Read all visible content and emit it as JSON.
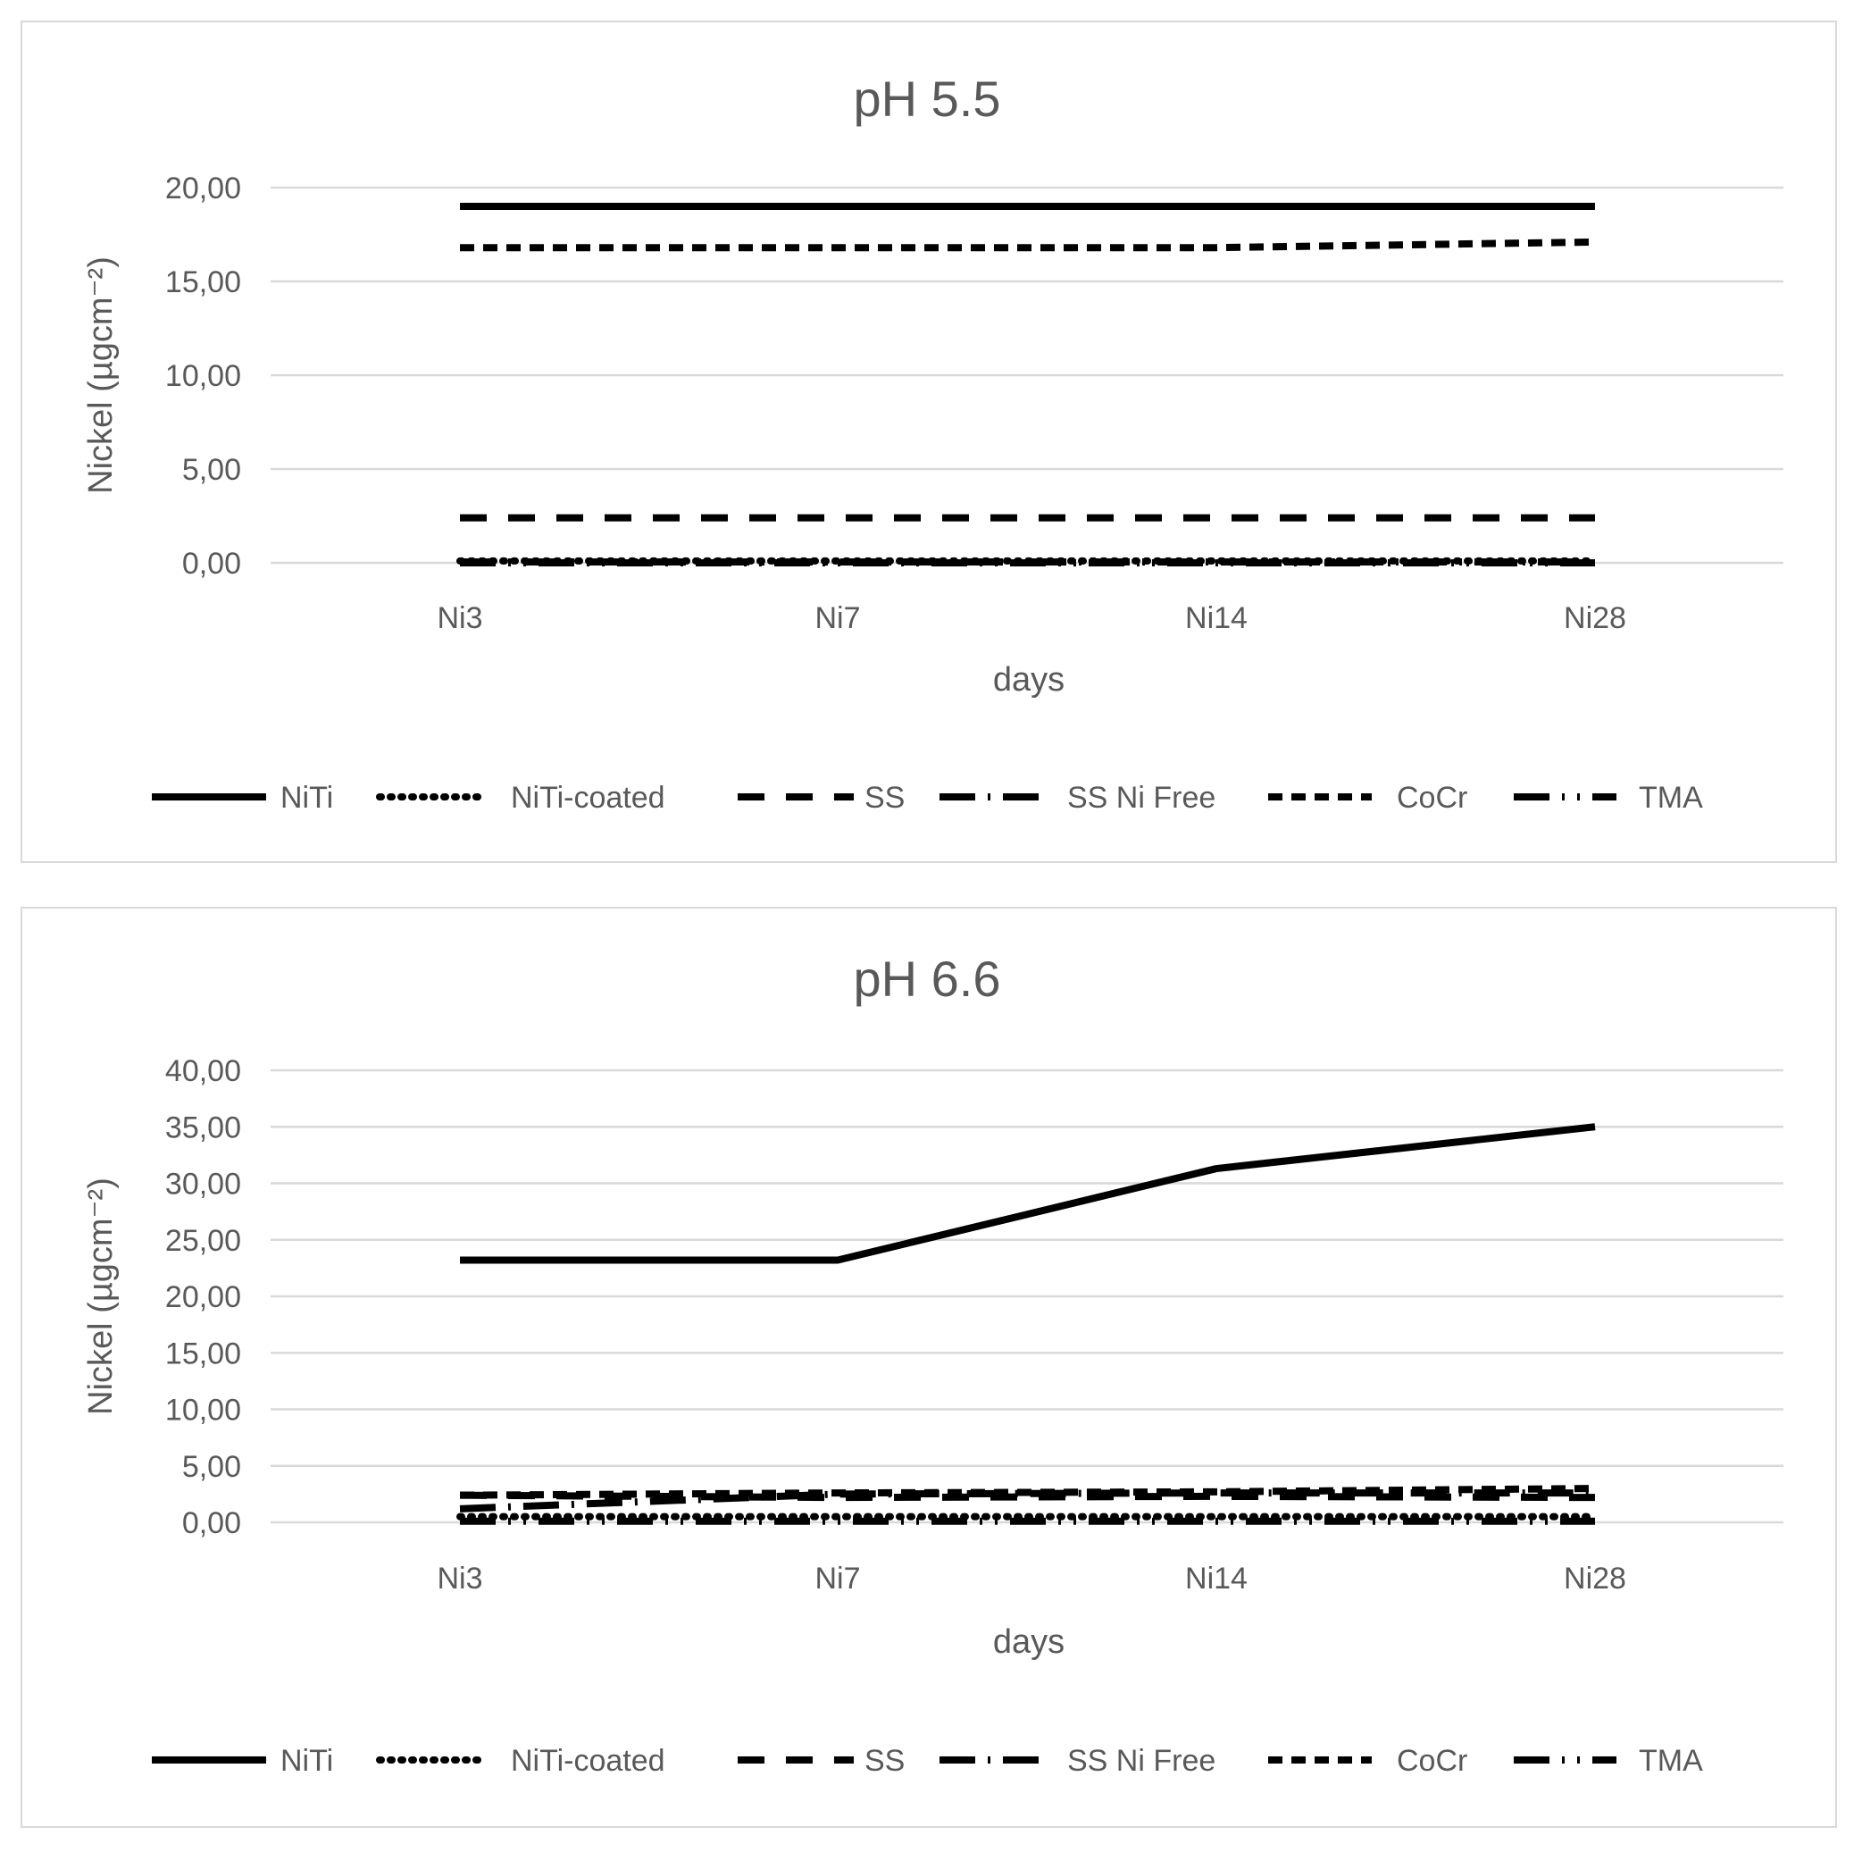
{
  "chart_data": [
    {
      "type": "line",
      "title": "pH 5.5",
      "xlabel": "days",
      "ylabel": "Nickel (µgcm⁻²)",
      "categories": [
        "Ni3",
        "Ni7",
        "Ni14",
        "Ni28"
      ],
      "ylim": [
        0,
        20
      ],
      "yticks": [
        "0,00",
        "5,00",
        "10,00",
        "15,00",
        "20,00"
      ],
      "grid": true,
      "legend_position": "bottom",
      "series": [
        {
          "name": "NiTi",
          "style": "solid",
          "values": [
            19.0,
            19.0,
            19.0,
            19.0
          ]
        },
        {
          "name": "NiTi-coated",
          "style": "dotted",
          "values": [
            0.1,
            0.1,
            0.1,
            0.1
          ]
        },
        {
          "name": "SS",
          "style": "dash",
          "values": [
            2.4,
            2.4,
            2.4,
            2.4
          ]
        },
        {
          "name": "SS Ni Free",
          "style": "long-dash-dot",
          "values": [
            0.05,
            0.05,
            0.05,
            0.05
          ]
        },
        {
          "name": "CoCr",
          "style": "square-dot",
          "values": [
            16.8,
            16.8,
            16.8,
            17.1
          ]
        },
        {
          "name": "TMA",
          "style": "long-dash-dot-dot",
          "values": [
            0.0,
            0.0,
            0.0,
            0.0
          ]
        }
      ]
    },
    {
      "type": "line",
      "title": "pH 6.6",
      "xlabel": "days",
      "ylabel": "Nickel (µgcm⁻²)",
      "categories": [
        "Ni3",
        "Ni7",
        "Ni14",
        "Ni28"
      ],
      "ylim": [
        0,
        40
      ],
      "yticks": [
        "0,00",
        "5,00",
        "10,00",
        "15,00",
        "20,00",
        "25,00",
        "30,00",
        "35,00",
        "40,00"
      ],
      "grid": true,
      "legend_position": "bottom",
      "series": [
        {
          "name": "NiTi",
          "style": "solid",
          "values": [
            23.2,
            23.2,
            31.3,
            35.0
          ]
        },
        {
          "name": "NiTi-coated",
          "style": "dotted",
          "values": [
            0.5,
            0.5,
            0.5,
            0.5
          ]
        },
        {
          "name": "SS",
          "style": "dash",
          "values": [
            2.4,
            2.2,
            2.3,
            2.2
          ]
        },
        {
          "name": "SS Ni Free",
          "style": "long-dash-dot",
          "values": [
            1.2,
            2.5,
            2.6,
            2.6
          ]
        },
        {
          "name": "CoCr",
          "style": "square-dot",
          "values": [
            2.4,
            2.6,
            2.7,
            3.0
          ]
        },
        {
          "name": "TMA",
          "style": "long-dash-dot-dot",
          "values": [
            0.1,
            0.1,
            0.1,
            0.1
          ]
        }
      ]
    }
  ]
}
